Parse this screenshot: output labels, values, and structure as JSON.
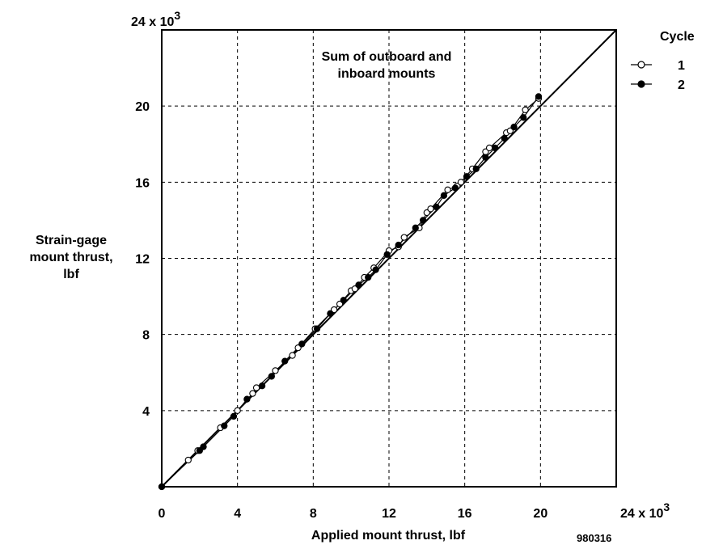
{
  "chart_data": {
    "type": "scatter",
    "xlabel": "Applied mount thrust, lbf",
    "ylabel_lines": [
      "Strain-gage",
      "mount thrust,",
      "lbf"
    ],
    "annotation_lines": [
      "Sum of outboard and",
      "inboard mounts"
    ],
    "figure_id": "980316",
    "xlim": [
      0,
      24
    ],
    "ylim": [
      0,
      24
    ],
    "x_ticks": [
      {
        "value": 0,
        "label": "0"
      },
      {
        "value": 4,
        "label": "4"
      },
      {
        "value": 8,
        "label": "8"
      },
      {
        "value": 12,
        "label": "12"
      },
      {
        "value": 16,
        "label": "16"
      },
      {
        "value": 20,
        "label": "20"
      }
    ],
    "y_ticks": [
      {
        "value": 4,
        "label": "4"
      },
      {
        "value": 8,
        "label": "8"
      },
      {
        "value": 12,
        "label": "12"
      },
      {
        "value": 16,
        "label": "16"
      },
      {
        "value": 20,
        "label": "20"
      }
    ],
    "x_max_label": "24 x 10",
    "y_max_label": "24 x 10",
    "exponent_label": "3",
    "grid": true,
    "legend_title": "Cycle",
    "legend_position": "top-right",
    "reference_line": {
      "x": [
        0,
        24
      ],
      "y": [
        0,
        24
      ]
    },
    "series": [
      {
        "name": "1",
        "marker": "open-circle",
        "x": [
          0,
          1.4,
          1.9,
          3.1,
          4.0,
          4.8,
          5.0,
          6.0,
          6.9,
          7.2,
          8.1,
          9.1,
          9.4,
          10.0,
          10.2,
          10.7,
          11.2,
          12.0,
          12.5,
          12.8,
          13.6,
          14.0,
          14.2,
          15.1,
          15.6,
          15.8,
          16.4,
          17.1,
          17.3,
          18.2,
          18.4,
          19.2,
          19.9
        ],
        "y": [
          0,
          1.4,
          1.9,
          3.1,
          4.0,
          4.9,
          5.2,
          6.1,
          6.9,
          7.3,
          8.3,
          9.3,
          9.6,
          10.3,
          10.4,
          11.0,
          11.5,
          12.4,
          12.6,
          13.1,
          13.6,
          14.4,
          14.6,
          15.6,
          15.8,
          16.0,
          16.7,
          17.6,
          17.8,
          18.6,
          18.7,
          19.8,
          20.4
        ]
      },
      {
        "name": "2",
        "marker": "filled-circle",
        "x": [
          0,
          2.0,
          2.2,
          3.3,
          3.8,
          4.5,
          5.3,
          5.8,
          6.5,
          7.4,
          8.2,
          8.9,
          9.6,
          10.4,
          10.9,
          11.3,
          11.9,
          12.5,
          13.4,
          13.8,
          14.5,
          14.9,
          15.5,
          16.1,
          16.6,
          17.1,
          17.6,
          18.1,
          18.6,
          19.1,
          19.9
        ],
        "y": [
          0,
          1.9,
          2.1,
          3.2,
          3.7,
          4.6,
          5.3,
          5.8,
          6.6,
          7.5,
          8.3,
          9.1,
          9.8,
          10.6,
          11.0,
          11.4,
          12.2,
          12.7,
          13.6,
          14.0,
          14.7,
          15.3,
          15.7,
          16.3,
          16.7,
          17.3,
          17.8,
          18.3,
          18.9,
          19.4,
          20.5
        ]
      }
    ]
  }
}
